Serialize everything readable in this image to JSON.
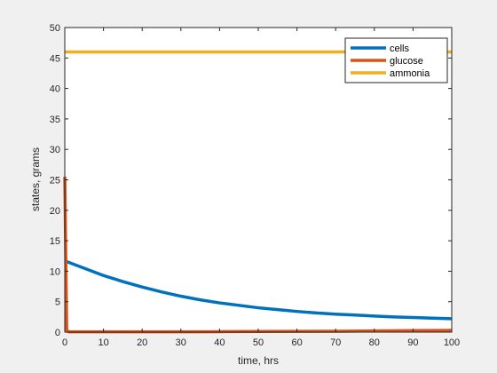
{
  "chart_data": {
    "type": "line",
    "title": "",
    "xlabel": "time, hrs",
    "ylabel": "states, grams",
    "xlim": [
      0,
      100
    ],
    "ylim": [
      0,
      50
    ],
    "xticks": [
      0,
      10,
      20,
      30,
      40,
      50,
      60,
      70,
      80,
      90,
      100
    ],
    "yticks": [
      0,
      5,
      10,
      15,
      20,
      25,
      30,
      35,
      40,
      45,
      50
    ],
    "grid": false,
    "legend_position": "top-right",
    "series": [
      {
        "name": "cells",
        "color": "#0072BD",
        "x": [
          0,
          5,
          10,
          15,
          20,
          25,
          30,
          35,
          40,
          45,
          50,
          55,
          60,
          65,
          70,
          75,
          80,
          85,
          90,
          95,
          100
        ],
        "y": [
          11.7,
          10.5,
          9.3,
          8.3,
          7.4,
          6.6,
          5.9,
          5.3,
          4.8,
          4.4,
          4.0,
          3.7,
          3.4,
          3.15,
          2.95,
          2.8,
          2.65,
          2.5,
          2.4,
          2.3,
          2.2
        ]
      },
      {
        "name": "glucose",
        "color": "#D95319",
        "x": [
          0,
          0.5,
          1,
          10,
          20,
          30,
          40,
          50,
          60,
          70,
          80,
          90,
          100
        ],
        "y": [
          25.5,
          0.3,
          0.05,
          0.05,
          0.05,
          0.05,
          0.08,
          0.1,
          0.12,
          0.15,
          0.2,
          0.25,
          0.3
        ]
      },
      {
        "name": "ammonia",
        "color": "#EDB120",
        "x": [
          0,
          100
        ],
        "y": [
          46,
          46
        ]
      }
    ]
  }
}
